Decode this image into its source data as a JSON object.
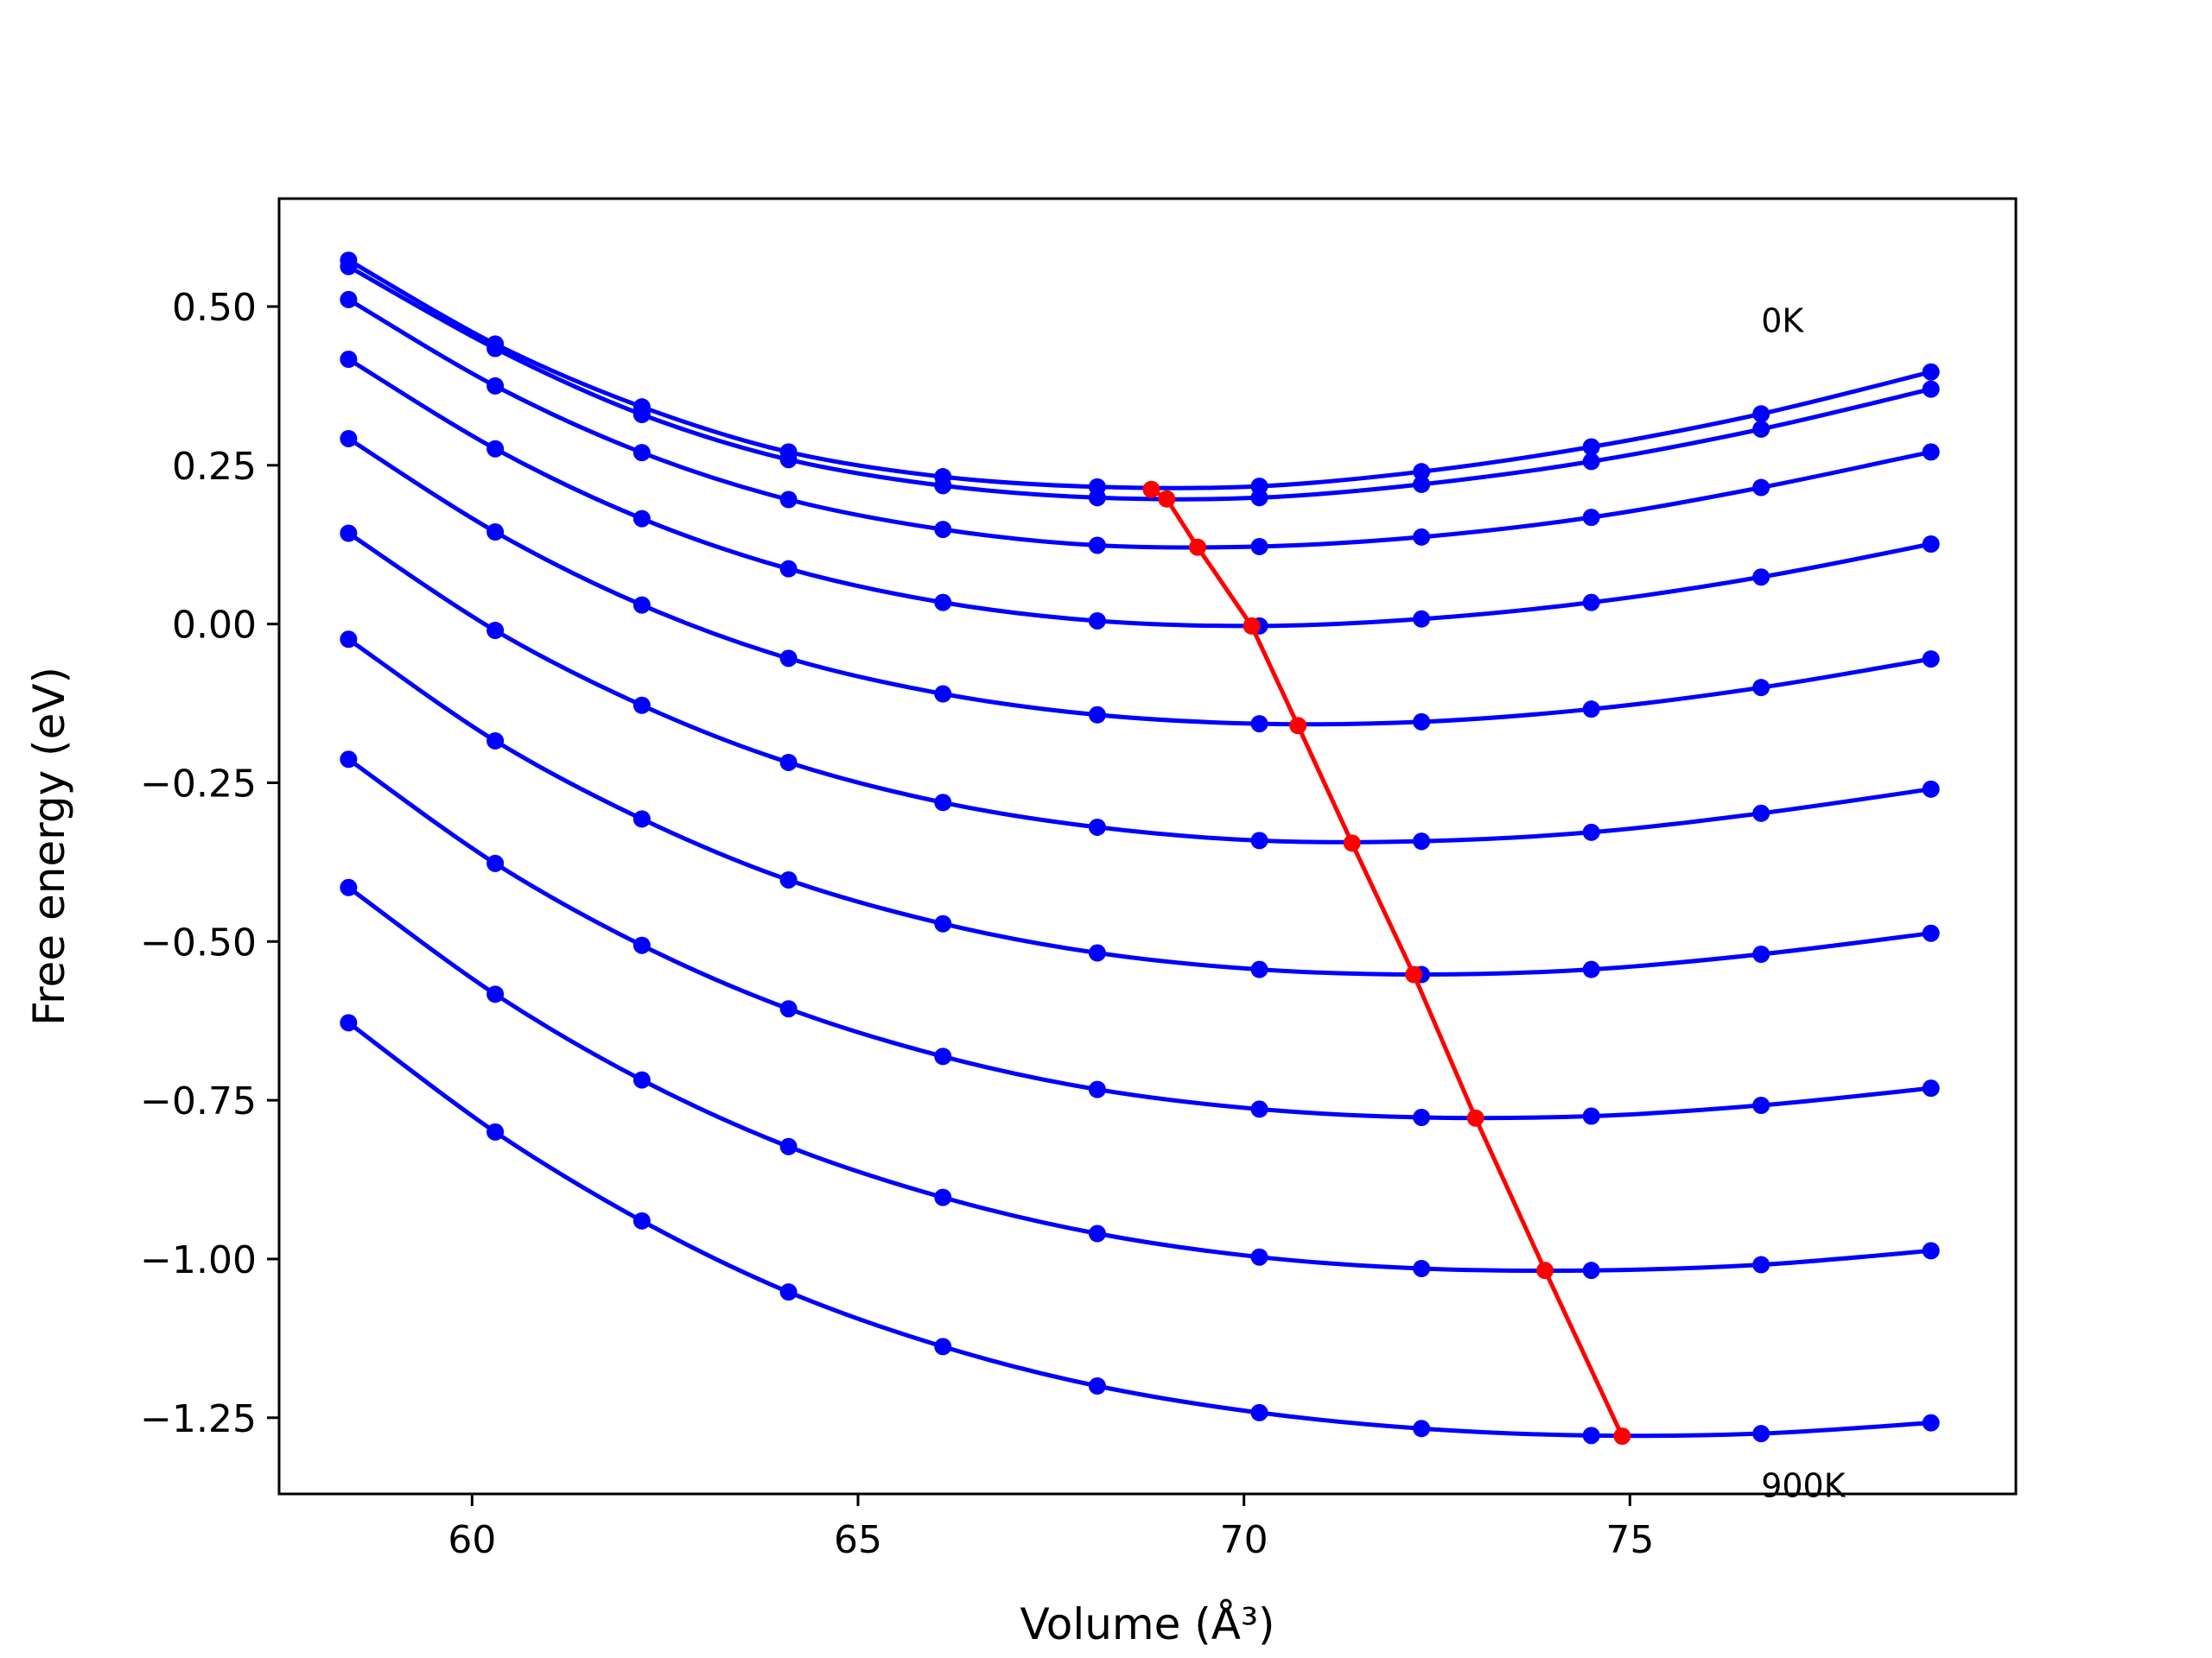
{
  "chart_data": {
    "type": "line",
    "title": "",
    "xlabel": "Volume (Å³)",
    "ylabel": "Free energy (eV)",
    "xlim": [
      57.5,
      80.0
    ],
    "ylim": [
      -1.37,
      0.67
    ],
    "xticks": [
      60,
      65,
      70,
      75
    ],
    "xtick_labels": [
      "60",
      "65",
      "70",
      "75"
    ],
    "yticks": [
      0.5,
      0.25,
      0.0,
      -0.25,
      -0.5,
      -0.75,
      -1.0,
      -1.25
    ],
    "ytick_labels": [
      "0.50",
      "0.25",
      "0.00",
      "−0.25",
      "−0.50",
      "−0.75",
      "−1.00",
      "−1.25"
    ],
    "grid": false,
    "x": [
      58.4,
      60.3,
      62.2,
      64.1,
      66.1,
      68.1,
      70.2,
      72.3,
      74.5,
      76.7,
      78.9
    ],
    "series": [
      {
        "color": "#0000ff",
        "values": [
          0.573,
          0.441,
          0.342,
          0.271,
          0.232,
          0.216,
          0.217,
          0.24,
          0.279,
          0.331,
          0.397
        ]
      },
      {
        "color": "#0000ff",
        "values": [
          0.563,
          0.434,
          0.33,
          0.259,
          0.218,
          0.199,
          0.199,
          0.22,
          0.256,
          0.307,
          0.37
        ]
      },
      {
        "color": "#0000ff",
        "values": [
          0.511,
          0.375,
          0.27,
          0.196,
          0.149,
          0.124,
          0.122,
          0.137,
          0.168,
          0.215,
          0.271
        ]
      },
      {
        "color": "#0000ff",
        "values": [
          0.417,
          0.276,
          0.166,
          0.087,
          0.034,
          0.005,
          -0.003,
          0.008,
          0.034,
          0.074,
          0.126
        ]
      },
      {
        "color": "#0000ff",
        "values": [
          0.292,
          0.145,
          0.03,
          -0.054,
          -0.11,
          -0.143,
          -0.157,
          -0.154,
          -0.134,
          -0.1,
          -0.055
        ]
      },
      {
        "color": "#0000ff",
        "values": [
          0.143,
          -0.01,
          -0.128,
          -0.218,
          -0.281,
          -0.32,
          -0.341,
          -0.342,
          -0.328,
          -0.298,
          -0.26
        ]
      },
      {
        "color": "#0000ff",
        "values": [
          -0.024,
          -0.184,
          -0.307,
          -0.403,
          -0.472,
          -0.518,
          -0.544,
          -0.552,
          -0.544,
          -0.52,
          -0.487
        ]
      },
      {
        "color": "#0000ff",
        "values": [
          -0.213,
          -0.377,
          -0.506,
          -0.606,
          -0.681,
          -0.733,
          -0.764,
          -0.777,
          -0.775,
          -0.758,
          -0.731
        ]
      },
      {
        "color": "#0000ff",
        "values": [
          -0.415,
          -0.583,
          -0.718,
          -0.823,
          -0.903,
          -0.96,
          -0.997,
          -1.015,
          -1.018,
          -1.009,
          -0.987
        ]
      },
      {
        "color": "#0000ff",
        "values": [
          -0.628,
          -0.8,
          -0.94,
          -1.052,
          -1.138,
          -1.2,
          -1.242,
          -1.267,
          -1.278,
          -1.275,
          -1.258
        ]
      }
    ],
    "minima_line": {
      "color": "#ff0000",
      "x": [
        68.8,
        69.0,
        69.4,
        70.1,
        70.7,
        71.4,
        72.2,
        73.0,
        73.9,
        74.9
      ],
      "y": [
        0.212,
        0.197,
        0.121,
        -0.003,
        -0.16,
        -0.345,
        -0.552,
        -0.778,
        -1.018,
        -1.279
      ]
    },
    "annotations": [
      {
        "text": "0K",
        "x": 76.7,
        "y": 0.46
      },
      {
        "text": "900K",
        "x": 76.7,
        "y": -1.375
      }
    ]
  }
}
